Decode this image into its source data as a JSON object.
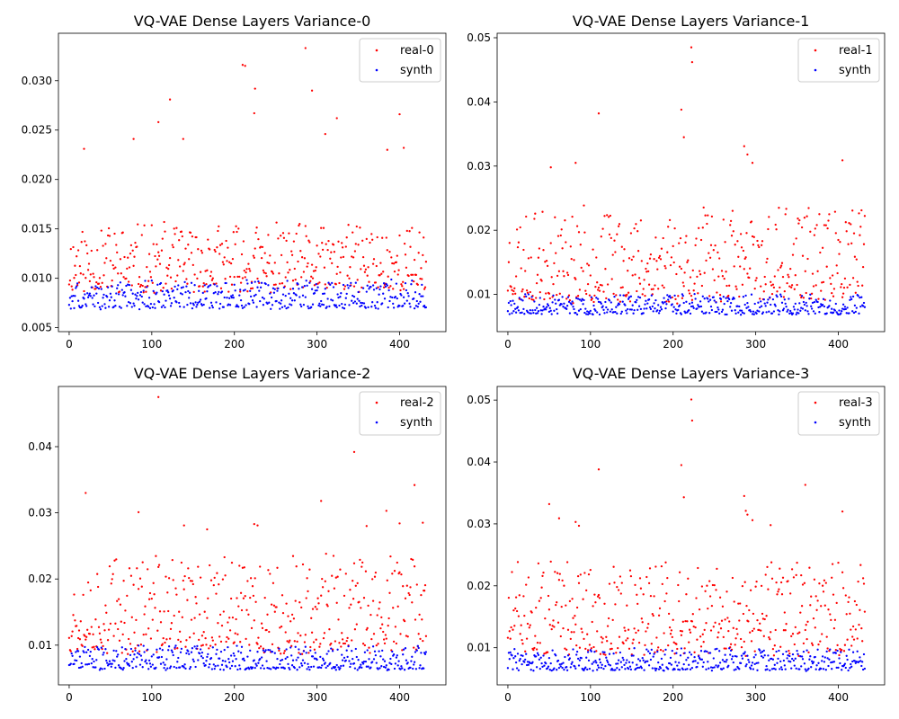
{
  "colors": {
    "real": "#ff0000",
    "synth": "#0000ff",
    "background": "#ffffff"
  },
  "chart_data": [
    {
      "type": "scatter",
      "title": "VQ-VAE Dense Layers Variance-0",
      "xlim": [
        -13,
        456
      ],
      "ylim": [
        0.0046,
        0.0348
      ],
      "xticks": [
        0,
        100,
        200,
        300,
        400
      ],
      "yticks": [
        0.005,
        0.01,
        0.015,
        0.02,
        0.025,
        0.03
      ],
      "ytick_labels": [
        "0.005",
        "0.010",
        "0.015",
        "0.020",
        "0.025",
        "0.030"
      ],
      "legend": "top-right",
      "seed": 11,
      "series": [
        {
          "name": "real-0",
          "color": "#ff0000",
          "n_points": 433,
          "base": 0.0085,
          "spread": 0.0065,
          "outliers": [
            [
              18,
              0.0231
            ],
            [
              78,
              0.0241
            ],
            [
              108,
              0.0258
            ],
            [
              122,
              0.0281
            ],
            [
              138,
              0.0241
            ],
            [
              210,
              0.0316
            ],
            [
              213,
              0.0315
            ],
            [
              225,
              0.0292
            ],
            [
              224,
              0.0267
            ],
            [
              286,
              0.0333
            ],
            [
              294,
              0.029
            ],
            [
              310,
              0.0246
            ],
            [
              324,
              0.0262
            ],
            [
              385,
              0.023
            ],
            [
              400,
              0.0266
            ],
            [
              405,
              0.0232
            ]
          ]
        },
        {
          "name": "synth",
          "color": "#0000ff",
          "n_points": 433,
          "base": 0.0068,
          "spread": 0.0028,
          "outliers": []
        }
      ]
    },
    {
      "type": "scatter",
      "title": "VQ-VAE Dense Layers Variance-1",
      "xlim": [
        -13,
        456
      ],
      "ylim": [
        0.0042,
        0.0507
      ],
      "xticks": [
        0,
        100,
        200,
        300,
        400
      ],
      "yticks": [
        0.01,
        0.02,
        0.03,
        0.04,
        0.05
      ],
      "ytick_labels": [
        "0.01",
        "0.02",
        "0.03",
        "0.04",
        "0.05"
      ],
      "legend": "top-right",
      "seed": 23,
      "series": [
        {
          "name": "real-1",
          "color": "#ff0000",
          "n_points": 433,
          "base": 0.0085,
          "spread": 0.014,
          "outliers": [
            [
              52,
              0.0298
            ],
            [
              82,
              0.0305
            ],
            [
              110,
              0.0382
            ],
            [
              210,
              0.0388
            ],
            [
              213,
              0.0345
            ],
            [
              222,
              0.0485
            ],
            [
              223,
              0.0462
            ],
            [
              286,
              0.0331
            ],
            [
              290,
              0.0318
            ],
            [
              296,
              0.0305
            ],
            [
              405,
              0.0309
            ]
          ]
        },
        {
          "name": "synth",
          "color": "#0000ff",
          "n_points": 433,
          "base": 0.0068,
          "spread": 0.003,
          "outliers": []
        }
      ]
    },
    {
      "type": "scatter",
      "title": "VQ-VAE Dense Layers Variance-2",
      "xlim": [
        -13,
        456
      ],
      "ylim": [
        0.004,
        0.0491
      ],
      "xticks": [
        0,
        100,
        200,
        300,
        400
      ],
      "yticks": [
        0.01,
        0.02,
        0.03,
        0.04
      ],
      "ytick_labels": [
        "0.01",
        "0.02",
        "0.03",
        "0.04"
      ],
      "legend": "top-right",
      "seed": 37,
      "series": [
        {
          "name": "real-2",
          "color": "#ff0000",
          "n_points": 433,
          "base": 0.0085,
          "spread": 0.014,
          "outliers": [
            [
              20,
              0.033
            ],
            [
              84,
              0.0301
            ],
            [
              108,
              0.0475
            ],
            [
              139,
              0.0281
            ],
            [
              167,
              0.0275
            ],
            [
              224,
              0.0283
            ],
            [
              228,
              0.0281
            ],
            [
              305,
              0.0318
            ],
            [
              345,
              0.0392
            ],
            [
              360,
              0.028
            ],
            [
              384,
              0.0303
            ],
            [
              400,
              0.0284
            ],
            [
              418,
              0.0342
            ],
            [
              428,
              0.0285
            ]
          ]
        },
        {
          "name": "synth",
          "color": "#0000ff",
          "n_points": 433,
          "base": 0.0062,
          "spread": 0.0034,
          "outliers": []
        }
      ]
    },
    {
      "type": "scatter",
      "title": "VQ-VAE Dense Layers Variance-3",
      "xlim": [
        -13,
        456
      ],
      "ylim": [
        0.004,
        0.0522
      ],
      "xticks": [
        0,
        100,
        200,
        300,
        400
      ],
      "yticks": [
        0.01,
        0.02,
        0.03,
        0.04,
        0.05
      ],
      "ytick_labels": [
        "0.01",
        "0.02",
        "0.03",
        "0.04",
        "0.05"
      ],
      "legend": "top-right",
      "seed": 51,
      "series": [
        {
          "name": "real-3",
          "color": "#ff0000",
          "n_points": 433,
          "base": 0.0085,
          "spread": 0.014,
          "outliers": [
            [
              50,
              0.0332
            ],
            [
              62,
              0.0309
            ],
            [
              82,
              0.0303
            ],
            [
              86,
              0.0297
            ],
            [
              110,
              0.0388
            ],
            [
              210,
              0.0395
            ],
            [
              213,
              0.0343
            ],
            [
              222,
              0.0501
            ],
            [
              223,
              0.0467
            ],
            [
              286,
              0.0345
            ],
            [
              288,
              0.0321
            ],
            [
              290,
              0.0315
            ],
            [
              296,
              0.0306
            ],
            [
              318,
              0.0298
            ],
            [
              360,
              0.0363
            ],
            [
              405,
              0.032
            ]
          ]
        },
        {
          "name": "synth",
          "color": "#0000ff",
          "n_points": 433,
          "base": 0.0062,
          "spread": 0.0034,
          "outliers": []
        }
      ]
    }
  ]
}
